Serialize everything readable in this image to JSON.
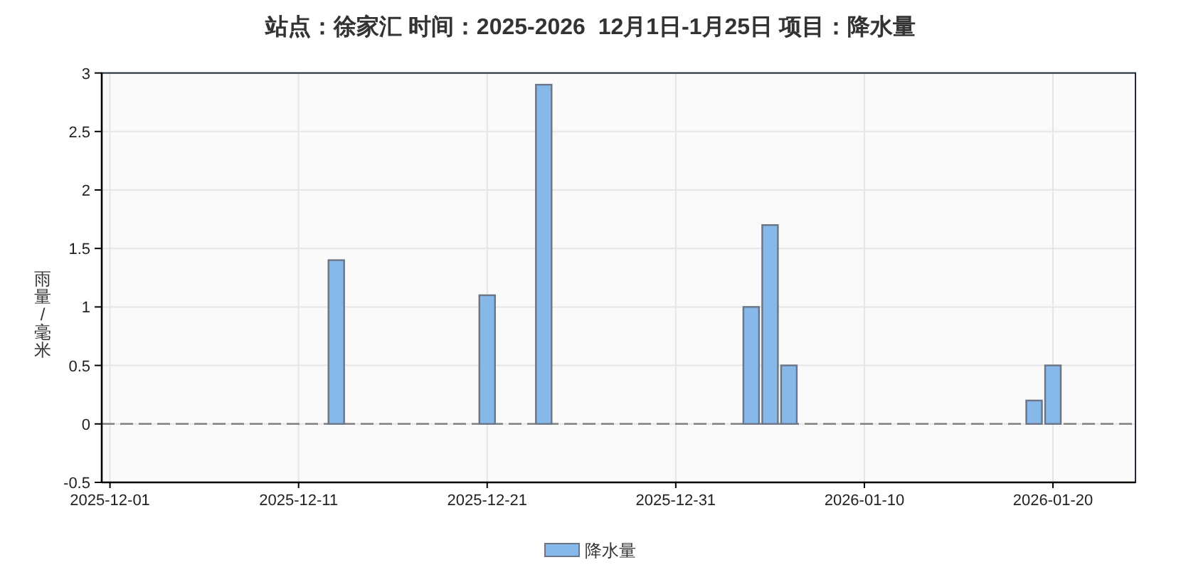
{
  "chart_data": {
    "type": "bar",
    "title": "站点：徐家汇 时间：2025-2026  12月1日-1月25日 项目：降水量",
    "ylabel": "雨量/毫米",
    "x": [
      "2025-12-13",
      "2025-12-21",
      "2025-12-24",
      "2026-01-04",
      "2026-01-05",
      "2026-01-06",
      "2026-01-19",
      "2026-01-20"
    ],
    "series": [
      {
        "name": "降水量",
        "color": "#86b9ea",
        "values": [
          1.4,
          1.1,
          2.9,
          1.0,
          1.7,
          0.5,
          0.2,
          0.5
        ]
      }
    ],
    "xlim": [
      "2025-11-30T13:30",
      "2026-01-24T09:00"
    ],
    "xticks": [
      "2025-12-01",
      "2025-12-11",
      "2025-12-21",
      "2025-12-31",
      "2026-01-10",
      "2026-01-20"
    ],
    "ylim": [
      -0.5,
      3
    ],
    "yticks": [
      -0.5,
      0,
      0.5,
      1,
      1.5,
      2,
      2.5,
      3
    ],
    "grid": true,
    "legend": "bottom",
    "ref_lines": [
      {
        "axis": "y",
        "value": 0,
        "color": "#808080",
        "line_style": "dashed"
      }
    ]
  }
}
